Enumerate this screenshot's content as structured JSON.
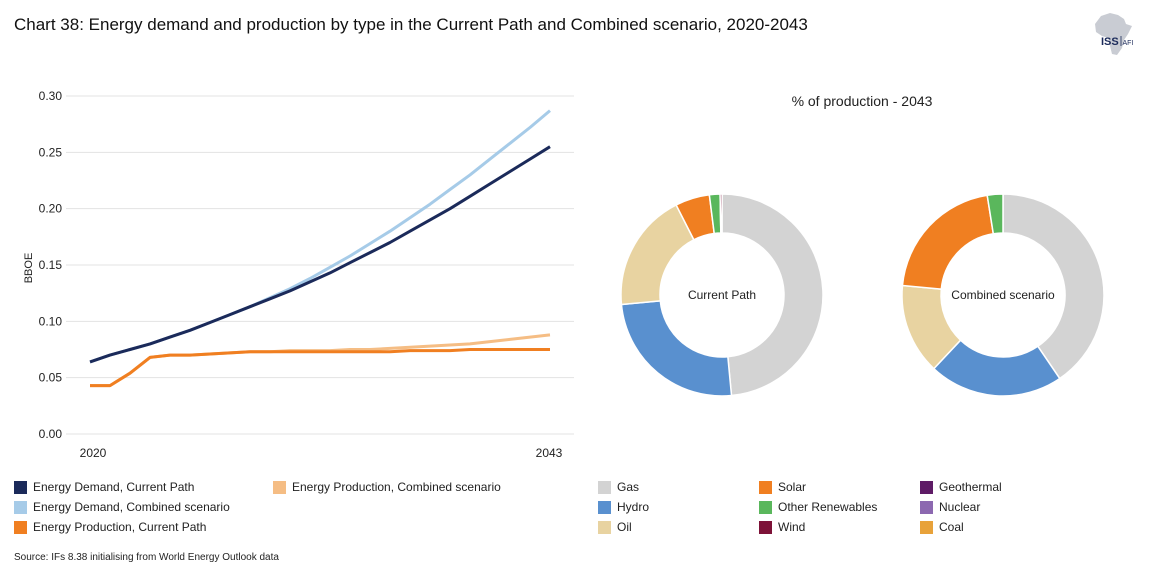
{
  "title": "Chart 38: Energy demand and production by type in the Current Path and Combined scenario, 2020-2043",
  "logo": {
    "text": "ISS",
    "subtext": "AFI"
  },
  "source": "Source: IFs 8.38 initialising from World Energy Outlook data",
  "chart_data": [
    {
      "type": "line",
      "title": "",
      "xlabel": "",
      "ylabel": "BBOE",
      "x": [
        2020,
        2021,
        2022,
        2023,
        2024,
        2025,
        2026,
        2027,
        2028,
        2029,
        2030,
        2031,
        2032,
        2033,
        2034,
        2035,
        2036,
        2037,
        2038,
        2039,
        2040,
        2041,
        2042,
        2043
      ],
      "x_tick_labels": [
        "2020",
        "2043"
      ],
      "ylim": [
        0,
        0.3
      ],
      "y_ticks": [
        0.0,
        0.05,
        0.1,
        0.15,
        0.2,
        0.25,
        0.3
      ],
      "y_tick_labels": [
        "0.00",
        "0.05",
        "0.10",
        "0.15",
        "0.20",
        "0.25",
        "0.30"
      ],
      "grid": true,
      "series": [
        {
          "name": "Energy Demand, Current Path",
          "color": "#1b2a5a",
          "values": [
            0.064,
            0.07,
            0.075,
            0.08,
            0.086,
            0.092,
            0.099,
            0.106,
            0.113,
            0.12,
            0.127,
            0.135,
            0.143,
            0.152,
            0.161,
            0.17,
            0.18,
            0.19,
            0.2,
            0.211,
            0.222,
            0.233,
            0.244,
            0.255
          ]
        },
        {
          "name": "Energy Demand, Combined scenario",
          "color": "#a6cbe8",
          "values": [
            0.064,
            0.07,
            0.075,
            0.08,
            0.086,
            0.092,
            0.099,
            0.106,
            0.113,
            0.121,
            0.129,
            0.138,
            0.148,
            0.158,
            0.169,
            0.18,
            0.192,
            0.204,
            0.217,
            0.23,
            0.244,
            0.258,
            0.272,
            0.287
          ]
        },
        {
          "name": "Energy Production, Current Path",
          "color": "#f07f21",
          "values": [
            0.043,
            0.043,
            0.054,
            0.068,
            0.07,
            0.07,
            0.071,
            0.072,
            0.073,
            0.073,
            0.073,
            0.073,
            0.073,
            0.073,
            0.073,
            0.073,
            0.074,
            0.074,
            0.074,
            0.075,
            0.075,
            0.075,
            0.075,
            0.075
          ]
        },
        {
          "name": "Energy Production, Combined scenario",
          "color": "#f5bd84",
          "values": [
            0.043,
            0.043,
            0.054,
            0.068,
            0.07,
            0.07,
            0.071,
            0.072,
            0.073,
            0.073,
            0.074,
            0.074,
            0.074,
            0.075,
            0.075,
            0.076,
            0.077,
            0.078,
            0.079,
            0.08,
            0.082,
            0.084,
            0.086,
            0.088
          ]
        }
      ],
      "legend": [
        [
          "Energy Demand, Current Path",
          "Energy Demand, Combined scenario",
          "Energy Production, Current Path"
        ],
        [
          "Energy Production, Combined scenario"
        ]
      ]
    },
    {
      "type": "pie",
      "title": "% of production - 2043",
      "donuts": [
        {
          "label": "Current Path",
          "slices": [
            {
              "name": "Gas",
              "value": 48.5
            },
            {
              "name": "Hydro",
              "value": 25.0
            },
            {
              "name": "Oil",
              "value": 19.0
            },
            {
              "name": "Solar",
              "value": 5.5
            },
            {
              "name": "Other Renewables",
              "value": 1.7
            },
            {
              "name": "Wind",
              "value": 0.3
            }
          ]
        },
        {
          "label": "Combined scenario",
          "slices": [
            {
              "name": "Gas",
              "value": 40.5
            },
            {
              "name": "Hydro",
              "value": 21.5
            },
            {
              "name": "Oil",
              "value": 14.5
            },
            {
              "name": "Solar",
              "value": 21.0
            },
            {
              "name": "Other Renewables",
              "value": 2.5
            }
          ]
        }
      ],
      "legend": [
        {
          "name": "Gas",
          "color": "#d3d3d3"
        },
        {
          "name": "Hydro",
          "color": "#5990cf"
        },
        {
          "name": "Oil",
          "color": "#e8d3a1"
        },
        {
          "name": "Solar",
          "color": "#f07f21"
        },
        {
          "name": "Other Renewables",
          "color": "#5ab75c"
        },
        {
          "name": "Wind",
          "color": "#7d1238"
        },
        {
          "name": "Geothermal",
          "color": "#5e1b66"
        },
        {
          "name": "Nuclear",
          "color": "#8c68b0"
        },
        {
          "name": "Coal",
          "color": "#e8a23a"
        }
      ]
    }
  ]
}
